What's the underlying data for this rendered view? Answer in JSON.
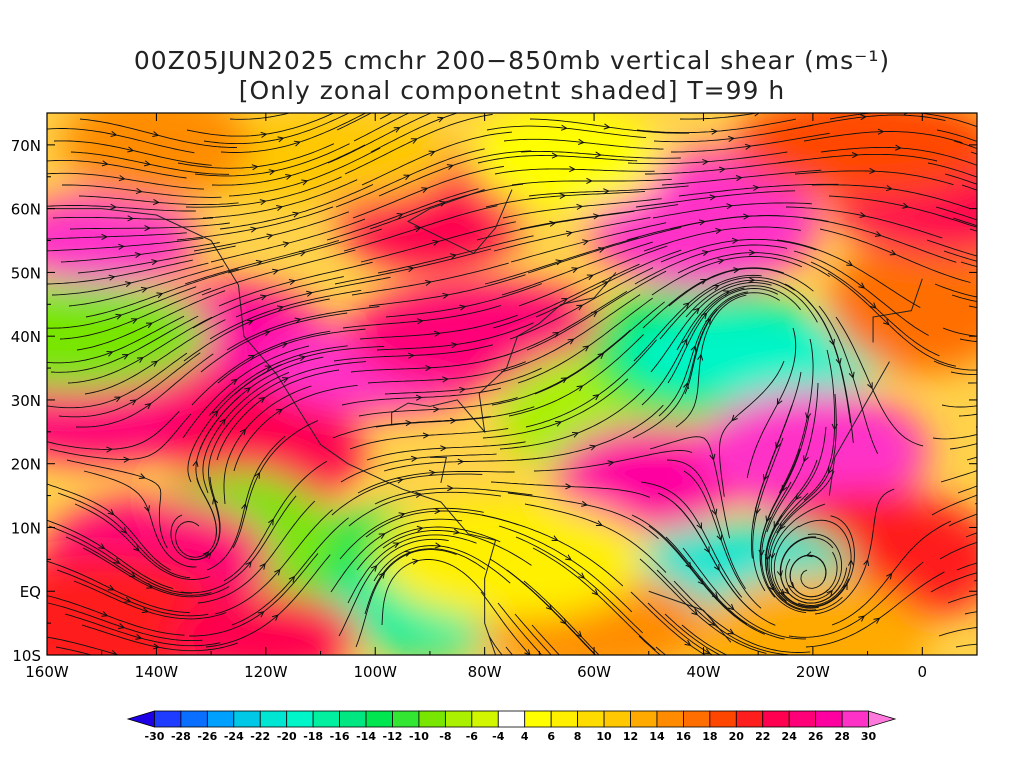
{
  "title": {
    "line1": "00Z05JUN2025 cmchr 200−850mb vertical shear (ms⁻¹)",
    "line2": "[Only zonal componetnt shaded] T=99 h"
  },
  "axes": {
    "lat_labels": [
      "70N",
      "60N",
      "50N",
      "40N",
      "30N",
      "20N",
      "10N",
      "EQ",
      "10S"
    ],
    "lat_values": [
      70,
      60,
      50,
      40,
      30,
      20,
      10,
      0,
      -10
    ],
    "lon_labels": [
      "160W",
      "140W",
      "120W",
      "100W",
      "80W",
      "60W",
      "40W",
      "20W",
      "0"
    ],
    "lon_values": [
      -160,
      -140,
      -120,
      -100,
      -80,
      -60,
      -40,
      -20,
      0
    ],
    "lon_range": [
      -160,
      10
    ],
    "lat_range": [
      -10,
      75
    ]
  },
  "colorbar": {
    "labels": [
      "-30",
      "-28",
      "-26",
      "-24",
      "-22",
      "-20",
      "-18",
      "-16",
      "-14",
      "-12",
      "-10",
      "-8",
      "-6",
      "-4",
      "4",
      "6",
      "8",
      "10",
      "12",
      "14",
      "16",
      "18",
      "20",
      "22",
      "24",
      "26",
      "28",
      "30"
    ],
    "colors": [
      "#1e00e6",
      "#1e3cff",
      "#0a6eff",
      "#00a0ff",
      "#00c8e6",
      "#00e6d2",
      "#00f5c8",
      "#00f0a0",
      "#00e680",
      "#00e650",
      "#32e632",
      "#78e600",
      "#aaf000",
      "#d2f500",
      "#ffffff",
      "#ffff00",
      "#fff000",
      "#ffdc00",
      "#ffc800",
      "#ffaa00",
      "#ff8c00",
      "#ff6e00",
      "#ff4600",
      "#ff1e1e",
      "#ff0050",
      "#ff0078",
      "#ff00a0",
      "#ff32c8",
      "#ff78dc"
    ]
  },
  "regions": [
    {
      "lon": -150,
      "lat": 55,
      "v": 29
    },
    {
      "lon": -130,
      "lat": 40,
      "v": 26
    },
    {
      "lon": -150,
      "lat": 30,
      "v": 24
    },
    {
      "lon": -120,
      "lat": 22,
      "v": 22
    },
    {
      "lon": -100,
      "lat": 35,
      "v": 28
    },
    {
      "lon": -80,
      "lat": 40,
      "v": 24
    },
    {
      "lon": -60,
      "lat": 28,
      "v": -8
    },
    {
      "lon": -40,
      "lat": 38,
      "v": -14
    },
    {
      "lon": -30,
      "lat": 37,
      "v": -20
    },
    {
      "lon": -50,
      "lat": 18,
      "v": 26
    },
    {
      "lon": -20,
      "lat": 22,
      "v": 28
    },
    {
      "lon": -10,
      "lat": 5,
      "v": 20
    },
    {
      "lon": -30,
      "lat": 4,
      "v": -16
    },
    {
      "lon": -35,
      "lat": 2,
      "v": -22
    },
    {
      "lon": -100,
      "lat": 3,
      "v": -14
    },
    {
      "lon": -125,
      "lat": 8,
      "v": -10
    },
    {
      "lon": -90,
      "lat": -3,
      "v": -18
    },
    {
      "lon": -155,
      "lat": 40,
      "v": -10
    },
    {
      "lon": -90,
      "lat": 60,
      "v": 22
    },
    {
      "lon": -40,
      "lat": 58,
      "v": 28
    },
    {
      "lon": -110,
      "lat": 68,
      "v": 10
    },
    {
      "lon": -65,
      "lat": 68,
      "v": 4
    },
    {
      "lon": -140,
      "lat": 5,
      "v": 24
    },
    {
      "lon": -150,
      "lat": -5,
      "v": 20
    },
    {
      "lon": -120,
      "lat": -7,
      "v": 22
    },
    {
      "lon": -60,
      "lat": -5,
      "v": 14
    },
    {
      "lon": -75,
      "lat": 5,
      "v": 6
    },
    {
      "lon": 0,
      "lat": 45,
      "v": 16
    },
    {
      "lon": 5,
      "lat": 60,
      "v": 22
    },
    {
      "lon": -10,
      "lat": 70,
      "v": 18
    },
    {
      "lon": -140,
      "lat": 70,
      "v": 14
    },
    {
      "lon": -20,
      "lat": -8,
      "v": 12
    }
  ]
}
